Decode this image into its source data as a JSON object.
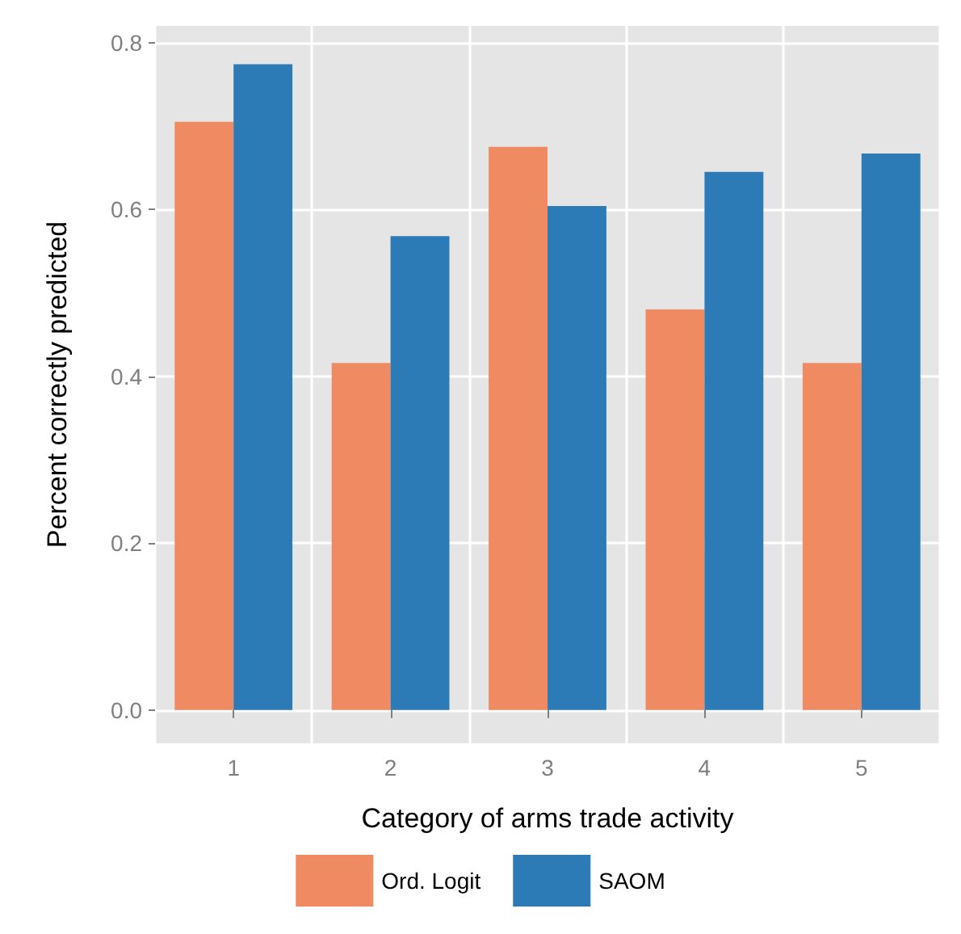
{
  "chart_data": {
    "type": "bar",
    "xlabel": "Category of arms trade activity",
    "ylabel": "Percent correctly predicted",
    "categories": [
      "1",
      "2",
      "3",
      "4",
      "5"
    ],
    "series": [
      {
        "name": "Ord. Logit",
        "color": "#ef8a62",
        "values": [
          0.705,
          0.416,
          0.675,
          0.48,
          0.416
        ]
      },
      {
        "name": "SAOM",
        "color": "#2c7bb6",
        "values": [
          0.774,
          0.568,
          0.604,
          0.645,
          0.667
        ]
      }
    ],
    "ylim": [
      -0.04,
      0.82
    ],
    "yticks": [
      {
        "value": 0,
        "label": "0.0"
      },
      0.2,
      0.4,
      0.6,
      0.8
    ],
    "grid": true,
    "legend": "bottom"
  }
}
